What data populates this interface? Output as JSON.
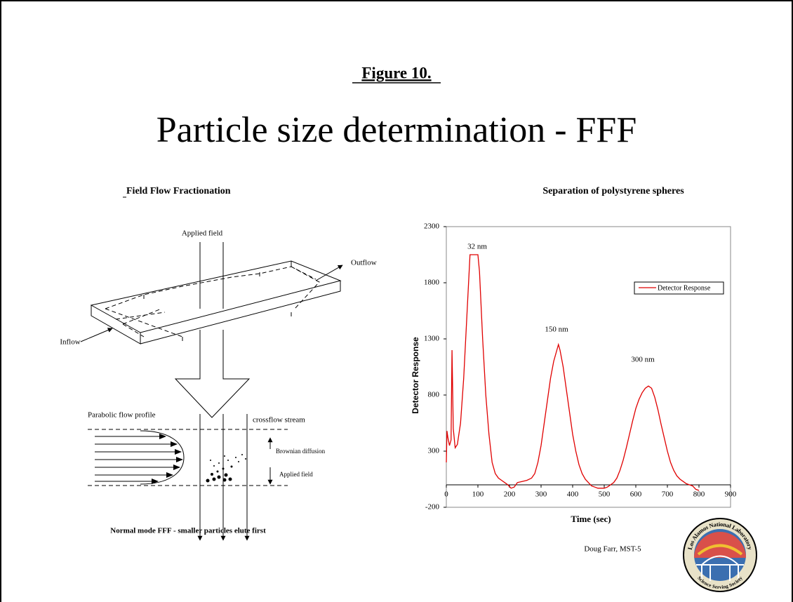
{
  "header": {
    "figure": "Figure 10.",
    "title": "Particle size determination - FFF"
  },
  "diagram": {
    "title": "Field Flow Fractionation",
    "applied_field_top": "Applied field",
    "outflow": "Outflow",
    "inflow": "Inflow",
    "parabolic": "Parabolic flow profile",
    "crossflow": "crossflow stream",
    "brownian": "Brownian diffusion",
    "applied_field_bottom": "Applied field",
    "caption": "Normal mode FFF - smaller particles elute first"
  },
  "footer": {
    "author": "Doug Farr, MST-5"
  },
  "logo": {
    "name": "Los Alamos National Laboratory",
    "motto": "Science Serving Society"
  },
  "chart_data": {
    "type": "line",
    "title": "Separation of polystyrene spheres",
    "x_label": "Time (sec)",
    "y_label": "Detector Response",
    "x": [
      0,
      2,
      5,
      10,
      15,
      18,
      22,
      28,
      35,
      45,
      55,
      65,
      75,
      80,
      100,
      105,
      115,
      125,
      135,
      145,
      155,
      165,
      175,
      185,
      195,
      205,
      215,
      225,
      240,
      255,
      270,
      280,
      290,
      300,
      310,
      320,
      330,
      340,
      350,
      355,
      360,
      370,
      380,
      390,
      400,
      410,
      420,
      430,
      440,
      450,
      460,
      470,
      480,
      490,
      500,
      510,
      520,
      530,
      540,
      550,
      560,
      570,
      580,
      590,
      600,
      610,
      620,
      630,
      640,
      650,
      660,
      670,
      680,
      690,
      700,
      710,
      720,
      730,
      740,
      750,
      760,
      770,
      780,
      790,
      800
    ],
    "series": [
      {
        "name": "Detector Response",
        "color": "#e00000",
        "values": [
          200,
          480,
          420,
          350,
          400,
          1200,
          500,
          330,
          360,
          550,
          950,
          1500,
          2050,
          2050,
          2050,
          1900,
          1300,
          800,
          450,
          200,
          100,
          60,
          40,
          20,
          0,
          -30,
          -20,
          20,
          30,
          40,
          60,
          100,
          200,
          350,
          550,
          750,
          950,
          1100,
          1200,
          1250,
          1200,
          1050,
          850,
          650,
          450,
          300,
          180,
          100,
          50,
          20,
          -10,
          -20,
          -30,
          -30,
          -30,
          -20,
          0,
          20,
          60,
          130,
          220,
          330,
          450,
          570,
          680,
          760,
          820,
          860,
          880,
          860,
          780,
          670,
          540,
          420,
          300,
          200,
          130,
          80,
          50,
          30,
          10,
          0,
          -10,
          -40,
          -50
        ]
      }
    ],
    "annotations": [
      "32 nm",
      "150 nm",
      "300 nm"
    ],
    "xlim": [
      0,
      900
    ],
    "xticks": [
      0,
      100,
      200,
      300,
      400,
      500,
      600,
      700,
      800,
      900
    ],
    "ylim": [
      -200,
      2300
    ],
    "yticks": [
      -200,
      300,
      800,
      1300,
      1800,
      2300
    ],
    "legend": "upper-right"
  }
}
